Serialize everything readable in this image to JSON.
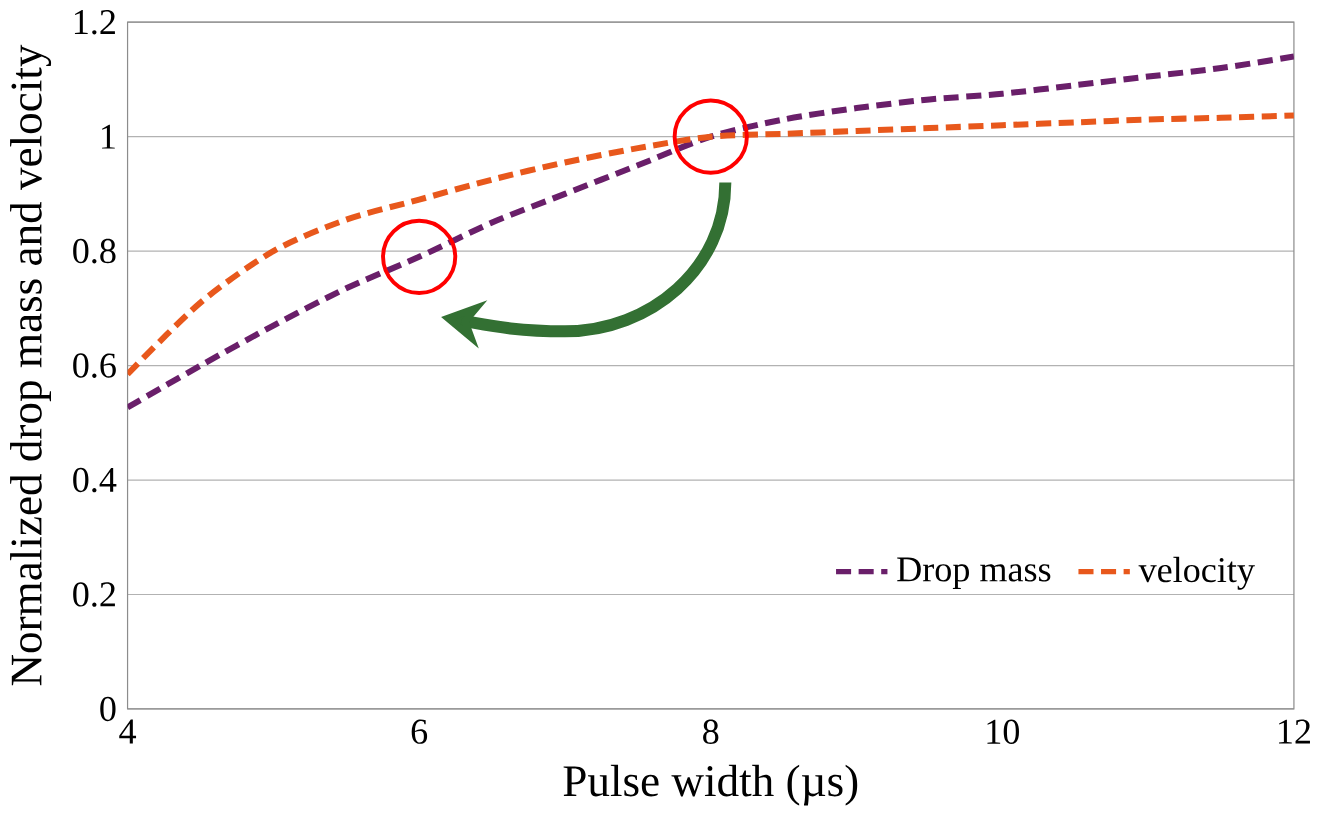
{
  "chart_data": {
    "type": "line",
    "xlabel": "Pulse width (µs)",
    "ylabel": "Normalized drop mass and velocity",
    "xlim": [
      4,
      12
    ],
    "ylim": [
      0,
      1.2
    ],
    "xticks": [
      4,
      6,
      8,
      10,
      12
    ],
    "yticks": [
      0,
      0.2,
      0.4,
      0.6,
      0.8,
      1,
      1.2
    ],
    "grid": "y",
    "legend": "bottom right",
    "line_style": "dashed",
    "marker": "none",
    "series": [
      {
        "name": "Drop mass",
        "color": "#6a1f6a",
        "x": [
          4,
          4.5,
          5,
          5.5,
          6,
          6.5,
          7,
          7.5,
          8,
          8.5,
          9,
          9.5,
          10,
          10.5,
          11,
          11.5,
          12
        ],
        "values": [
          0.527,
          0.6,
          0.67,
          0.735,
          0.79,
          0.85,
          0.9,
          0.95,
          1.0,
          1.03,
          1.05,
          1.065,
          1.075,
          1.09,
          1.105,
          1.12,
          1.14
        ]
      },
      {
        "name": "velocity",
        "color": "#e8581c",
        "x": [
          4,
          4.5,
          5,
          5.5,
          6,
          6.5,
          7,
          7.5,
          8,
          8.5,
          9,
          9.5,
          10,
          10.5,
          11,
          11.5,
          12
        ],
        "values": [
          0.585,
          0.71,
          0.8,
          0.855,
          0.89,
          0.925,
          0.955,
          0.98,
          1.0,
          1.005,
          1.01,
          1.015,
          1.02,
          1.025,
          1.03,
          1.033,
          1.037
        ]
      }
    ]
  }
}
